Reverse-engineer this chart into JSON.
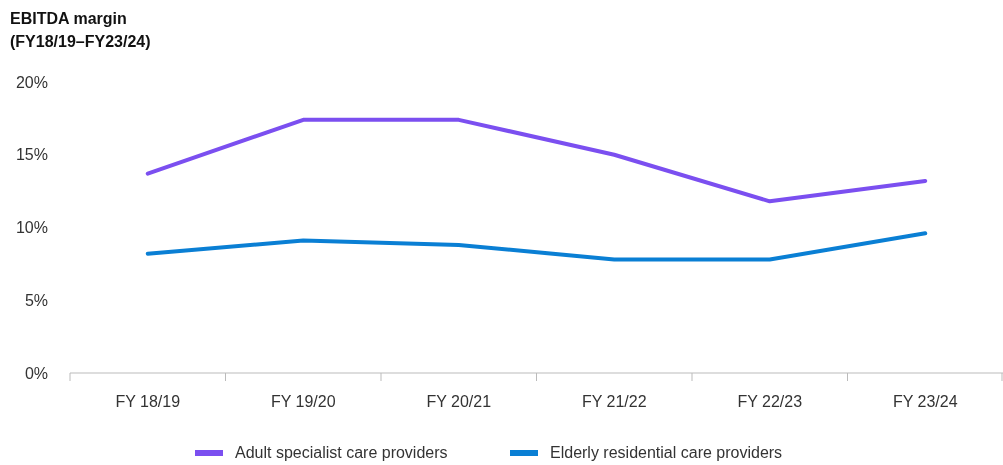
{
  "chart_data": {
    "type": "line",
    "title": "EBITDA margin",
    "subtitle": "(FY18/19–FY23/24)",
    "categories": [
      "FY 18/19",
      "FY 19/20",
      "FY 20/21",
      "FY 21/22",
      "FY 22/23",
      "FY 23/24"
    ],
    "series": [
      {
        "name": "Adult specialist care providers",
        "color": "#7b4ff0",
        "values": [
          13.7,
          17.4,
          17.4,
          15.0,
          11.8,
          13.2
        ]
      },
      {
        "name": "Elderly residential care providers",
        "color": "#0a7fd4",
        "values": [
          8.2,
          9.1,
          8.8,
          7.8,
          7.8,
          9.6
        ]
      }
    ],
    "ylim": [
      0,
      20
    ],
    "yticks": [
      {
        "value": 0,
        "label": "0%"
      },
      {
        "value": 5,
        "label": "5%"
      },
      {
        "value": 10,
        "label": "10%"
      },
      {
        "value": 15,
        "label": "15%"
      },
      {
        "value": 20,
        "label": "20%"
      }
    ],
    "grid": false,
    "legend": "bottom",
    "marker": "none",
    "line_style": "solid"
  }
}
